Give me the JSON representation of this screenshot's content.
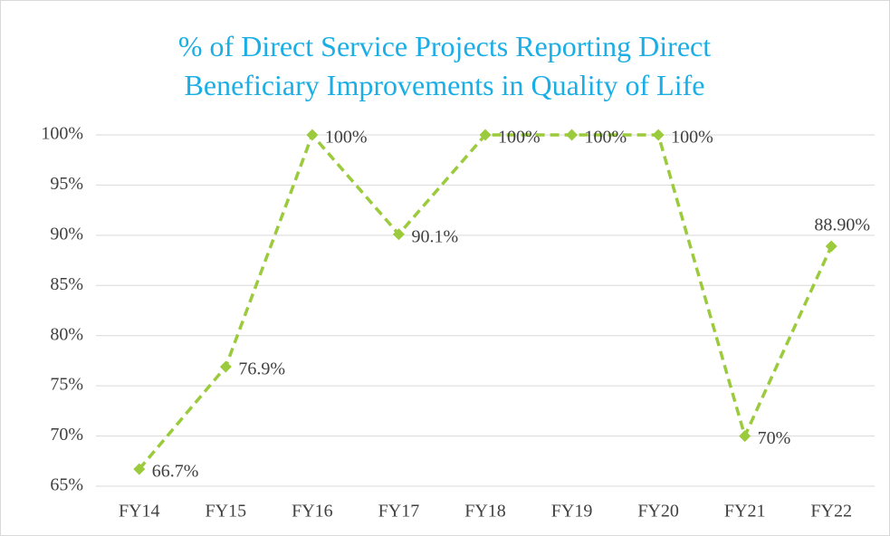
{
  "chart_data": {
    "type": "line",
    "title": "% of Direct Service Projects Reporting Direct Beneficiary Improvements in Quality of Life",
    "categories": [
      "FY14",
      "FY15",
      "FY16",
      "FY17",
      "FY18",
      "FY19",
      "FY20",
      "FY21",
      "FY22"
    ],
    "series": [
      {
        "color": "#9bcb3c",
        "values": [
          66.7,
          76.9,
          100,
          90.1,
          100,
          100,
          100,
          70,
          88.9
        ],
        "value_labels": [
          "66.7%",
          "76.9%",
          "100%",
          "90.1%",
          "100%",
          "100%",
          "100%",
          "70%",
          "88.90%"
        ]
      }
    ],
    "ylim": [
      65,
      100
    ],
    "yticks": [
      {
        "value": 65,
        "label": "65%"
      },
      {
        "value": 70,
        "label": "70%"
      },
      {
        "value": 75,
        "label": "75%"
      },
      {
        "value": 80,
        "label": "80%"
      },
      {
        "value": 85,
        "label": "85%"
      },
      {
        "value": 90,
        "label": "90%"
      },
      {
        "value": 95,
        "label": "95%"
      },
      {
        "value": 100,
        "label": "100%"
      }
    ],
    "grid": true
  }
}
